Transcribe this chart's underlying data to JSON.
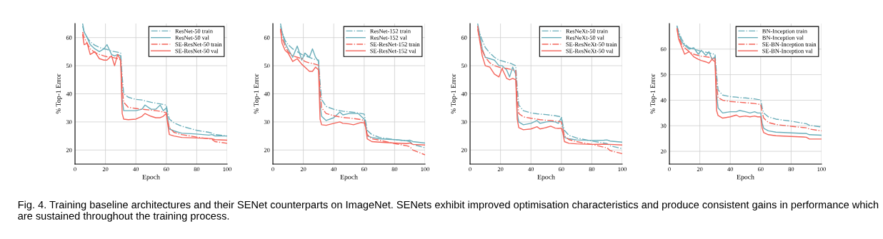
{
  "chart_data": [
    {
      "type": "line",
      "xlabel": "Epoch",
      "ylabel": "% Top-1 Error",
      "x": [
        5,
        6,
        8,
        10,
        13,
        16,
        19,
        21,
        24,
        26,
        28,
        30,
        31,
        32,
        35,
        40,
        44,
        46,
        50,
        53,
        56,
        58,
        60,
        61,
        62,
        65,
        70,
        80,
        88,
        90,
        92,
        100
      ],
      "xlim": [
        0,
        100
      ],
      "xticks": [
        0,
        20,
        40,
        60,
        80,
        100
      ],
      "ylim": [
        15,
        65
      ],
      "yticks": [
        20,
        30,
        40,
        50,
        60
      ],
      "grid": true,
      "legend": "top right",
      "annotations": [
        "Fig. 4. Training baseline architectures and their SENet counterparts on ImageNet. SENets exhibit improved optimisation characteristics and produce consistent gains in performance which are sustained throughout the training process."
      ],
      "series": [
        {
          "name": "ResNet-50 train",
          "color": "#6aaeba",
          "line_style": "dashed",
          "values": [
            64,
            62,
            60,
            58.5,
            57.3,
            56.5,
            56,
            55.8,
            55.2,
            55,
            54.8,
            54.5,
            46,
            40,
            38.8,
            38,
            37.8,
            37.5,
            37,
            36.7,
            36.4,
            36.2,
            36,
            33,
            31,
            29.7,
            28.5,
            27,
            26.3,
            26,
            25.5,
            25
          ]
        },
        {
          "name": "ResNet-50 val",
          "color": "#6aaeba",
          "line_style": "solid",
          "values": [
            65,
            62,
            60,
            57.5,
            56,
            55,
            56,
            57.5,
            54,
            53.5,
            54,
            53.5,
            38,
            34,
            34,
            34,
            34.5,
            36,
            34.5,
            34.5,
            36,
            34,
            35,
            31,
            27.5,
            26.8,
            26,
            25.7,
            25.3,
            25.5,
            25,
            25
          ]
        },
        {
          "name": "SE-ResNet-50 train",
          "color": "#f4645a",
          "line_style": "dashed",
          "values": [
            62,
            60,
            58,
            56,
            54.7,
            54,
            53.5,
            53.2,
            53,
            52.8,
            52.5,
            52,
            42,
            37,
            35.2,
            34.8,
            34.5,
            34.4,
            34.2,
            34,
            33.8,
            33.5,
            33.3,
            30,
            28,
            26.3,
            25.5,
            24.6,
            24,
            23.8,
            23,
            22.4
          ]
        },
        {
          "name": "SE-ResNet-50 val",
          "color": "#f4645a",
          "line_style": "solid",
          "values": [
            61,
            57.5,
            58,
            54,
            55,
            52.5,
            52,
            52,
            53.5,
            50,
            54,
            52,
            33,
            31,
            30.8,
            31,
            32,
            33,
            32,
            31.5,
            31.5,
            32,
            33,
            29,
            25.5,
            25,
            24.5,
            24.3,
            24.1,
            24,
            23.7,
            23.5
          ]
        }
      ]
    },
    {
      "type": "line",
      "xlabel": "Epoch",
      "ylabel": "% Top-1 Error",
      "x": [
        5,
        6,
        8,
        10,
        13,
        16,
        19,
        21,
        24,
        26,
        28,
        30,
        31,
        32,
        35,
        40,
        44,
        46,
        50,
        53,
        56,
        58,
        60,
        61,
        62,
        65,
        70,
        80,
        88,
        90,
        92,
        100
      ],
      "xlim": [
        0,
        100
      ],
      "xticks": [
        0,
        20,
        40,
        60,
        80,
        100
      ],
      "ylim": [
        15,
        65
      ],
      "yticks": [
        20,
        30,
        40,
        50,
        60
      ],
      "grid": true,
      "legend": "top right",
      "series": [
        {
          "name": "ResNet-152 train",
          "color": "#6aaeba",
          "line_style": "dashed",
          "values": [
            64,
            62,
            59,
            57.5,
            56,
            55,
            54,
            53.5,
            53,
            52.5,
            52.2,
            52,
            44,
            38,
            35.5,
            34.5,
            34,
            33.8,
            33.6,
            33.4,
            33.2,
            33,
            32.8,
            30,
            27,
            25.5,
            24.5,
            23.7,
            23.3,
            23,
            22,
            20.8
          ]
        },
        {
          "name": "ResNet-152 val",
          "color": "#6aaeba",
          "line_style": "solid",
          "values": [
            65,
            62,
            58,
            56,
            53,
            57,
            52,
            54.5,
            53,
            56,
            53,
            51.5,
            36,
            32,
            30.5,
            31.5,
            33.5,
            32.5,
            33,
            33,
            33,
            32,
            31,
            29,
            25,
            24.5,
            24,
            23.7,
            23.3,
            23.5,
            23,
            22.5
          ]
        },
        {
          "name": "SE-ResNet-152 train",
          "color": "#f4645a",
          "line_style": "dashed",
          "values": [
            63,
            60,
            57,
            55,
            53.5,
            53,
            52.5,
            51.5,
            51,
            50.8,
            50.5,
            50.2,
            41,
            35,
            33,
            32.2,
            31.8,
            31.6,
            31.4,
            31.2,
            31,
            30.8,
            30.6,
            28,
            25.5,
            24,
            23.5,
            22.3,
            21.5,
            21.2,
            20,
            18.3
          ]
        },
        {
          "name": "SE-ResNet-152 val",
          "color": "#f4645a",
          "line_style": "solid",
          "values": [
            63,
            58,
            55.5,
            54.5,
            51.5,
            52.5,
            50.5,
            49.5,
            48,
            48,
            49.5,
            48.5,
            31,
            29,
            28.8,
            29.5,
            30,
            29.5,
            29.3,
            29,
            29.5,
            29.8,
            29.7,
            28,
            24,
            23,
            22.8,
            22.5,
            22.3,
            22.5,
            22,
            21.8
          ]
        }
      ]
    },
    {
      "type": "line",
      "xlabel": "Epoch",
      "ylabel": "% Top-1 Error",
      "x": [
        5,
        6,
        8,
        10,
        13,
        16,
        19,
        21,
        24,
        26,
        28,
        30,
        31,
        32,
        35,
        40,
        44,
        46,
        50,
        53,
        56,
        58,
        60,
        61,
        62,
        65,
        70,
        80,
        88,
        90,
        92,
        100
      ],
      "xlim": [
        0,
        100
      ],
      "xticks": [
        0,
        20,
        40,
        60,
        80,
        100
      ],
      "ylim": [
        15,
        65
      ],
      "yticks": [
        20,
        30,
        40,
        50,
        60
      ],
      "grid": true,
      "legend": "top right",
      "series": [
        {
          "name": "ResNeXt-50 train",
          "color": "#6aaeba",
          "line_style": "dashed",
          "values": [
            64,
            62,
            59,
            56.5,
            54.5,
            53,
            52,
            51.7,
            51.2,
            51,
            50.5,
            50,
            42,
            36,
            34,
            33.2,
            32.9,
            32.8,
            32.6,
            32.4,
            32.2,
            32,
            31.8,
            29,
            27,
            25.2,
            24.3,
            23.2,
            22.5,
            22.3,
            21.5,
            20.5
          ]
        },
        {
          "name": "ResNeXt-50 val",
          "color": "#6aaeba",
          "line_style": "solid",
          "values": [
            65,
            62,
            56,
            53,
            52.5,
            52,
            50,
            50,
            48.5,
            46,
            49.5,
            47,
            33,
            30,
            29,
            29.5,
            30.5,
            29.5,
            30,
            30.2,
            30,
            29.5,
            31.5,
            28,
            24.5,
            24,
            23.6,
            23.4,
            23.5,
            23.6,
            23.2,
            22.8
          ]
        },
        {
          "name": "SE-ResNeXt-50 train",
          "color": "#f4645a",
          "line_style": "dashed",
          "values": [
            63,
            60,
            55.5,
            53,
            51,
            50,
            49.5,
            49.2,
            49,
            48.8,
            48.5,
            48.2,
            38,
            33,
            31.8,
            31.3,
            31,
            30.8,
            30.6,
            30.5,
            30.3,
            30.2,
            30,
            27.5,
            25,
            23.7,
            23,
            22,
            21,
            20.8,
            19.8,
            18.7
          ]
        },
        {
          "name": "SE-ResNeXt-50 val",
          "color": "#f4645a",
          "line_style": "solid",
          "values": [
            64,
            60,
            53.5,
            50,
            49.5,
            47,
            46,
            49,
            45.5,
            45,
            45.5,
            45,
            31,
            28,
            27.2,
            27.5,
            28.3,
            27.5,
            28,
            28.5,
            27.8,
            27.7,
            27.8,
            26,
            23,
            22.4,
            22.2,
            22,
            22.1,
            22,
            22,
            21.8
          ]
        }
      ]
    },
    {
      "type": "line",
      "xlabel": "Epoch",
      "ylabel": "% Top-1 Error",
      "x": [
        5,
        6,
        8,
        10,
        13,
        16,
        19,
        21,
        24,
        26,
        28,
        30,
        31,
        32,
        35,
        40,
        44,
        46,
        50,
        53,
        56,
        58,
        60,
        61,
        62,
        65,
        70,
        80,
        88,
        90,
        92,
        100
      ],
      "xlim": [
        0,
        100
      ],
      "xticks": [
        0,
        20,
        40,
        60,
        80,
        100
      ],
      "ylim": [
        15,
        70
      ],
      "yticks": [
        20,
        30,
        40,
        50,
        60
      ],
      "grid": true,
      "legend": "top right",
      "series": [
        {
          "name": "BN-Inception train",
          "color": "#6aaeba",
          "line_style": "dashed",
          "values": [
            69,
            67,
            64,
            62,
            60.5,
            60,
            59.5,
            59,
            58.8,
            58.5,
            58.2,
            58,
            50,
            44,
            42,
            41.4,
            41.2,
            41,
            40.9,
            40.7,
            40.5,
            40.3,
            40.2,
            37,
            35,
            33.5,
            32.6,
            31.8,
            31,
            30.8,
            30.2,
            29.5
          ]
        },
        {
          "name": "BN-Inception val",
          "color": "#6aaeba",
          "line_style": "solid",
          "values": [
            69,
            66,
            63,
            61.5,
            60,
            60.5,
            58,
            59.5,
            57.5,
            59,
            56,
            57,
            42,
            37,
            35,
            35.5,
            35.5,
            36,
            35.5,
            35,
            35.5,
            35,
            35,
            31,
            29,
            28,
            27.5,
            27.2,
            27,
            27,
            26.5,
            26.3
          ]
        },
        {
          "name": "SE-BN-Inception train",
          "color": "#f4645a",
          "line_style": "dashed",
          "values": [
            68,
            65,
            62,
            60.5,
            59,
            58,
            57.5,
            57.2,
            57,
            56.8,
            56.5,
            56.2,
            46,
            41,
            40,
            39.5,
            39.3,
            39.2,
            39,
            38.9,
            38.7,
            38.5,
            38.3,
            35,
            33,
            31.3,
            30.5,
            29.8,
            29.3,
            29.2,
            28.7,
            28
          ]
        },
        {
          "name": "SE-BN-Inception val",
          "color": "#f4645a",
          "line_style": "solid",
          "values": [
            68,
            64,
            61,
            58,
            59,
            57,
            56,
            55.5,
            55,
            54.5,
            56,
            55,
            36,
            34,
            33,
            33.5,
            34.2,
            33.5,
            33.8,
            33.5,
            33.8,
            33.5,
            33.5,
            29,
            27.3,
            26.5,
            26.1,
            25.8,
            25.6,
            25.5,
            24.8,
            24.8
          ]
        }
      ]
    }
  ]
}
